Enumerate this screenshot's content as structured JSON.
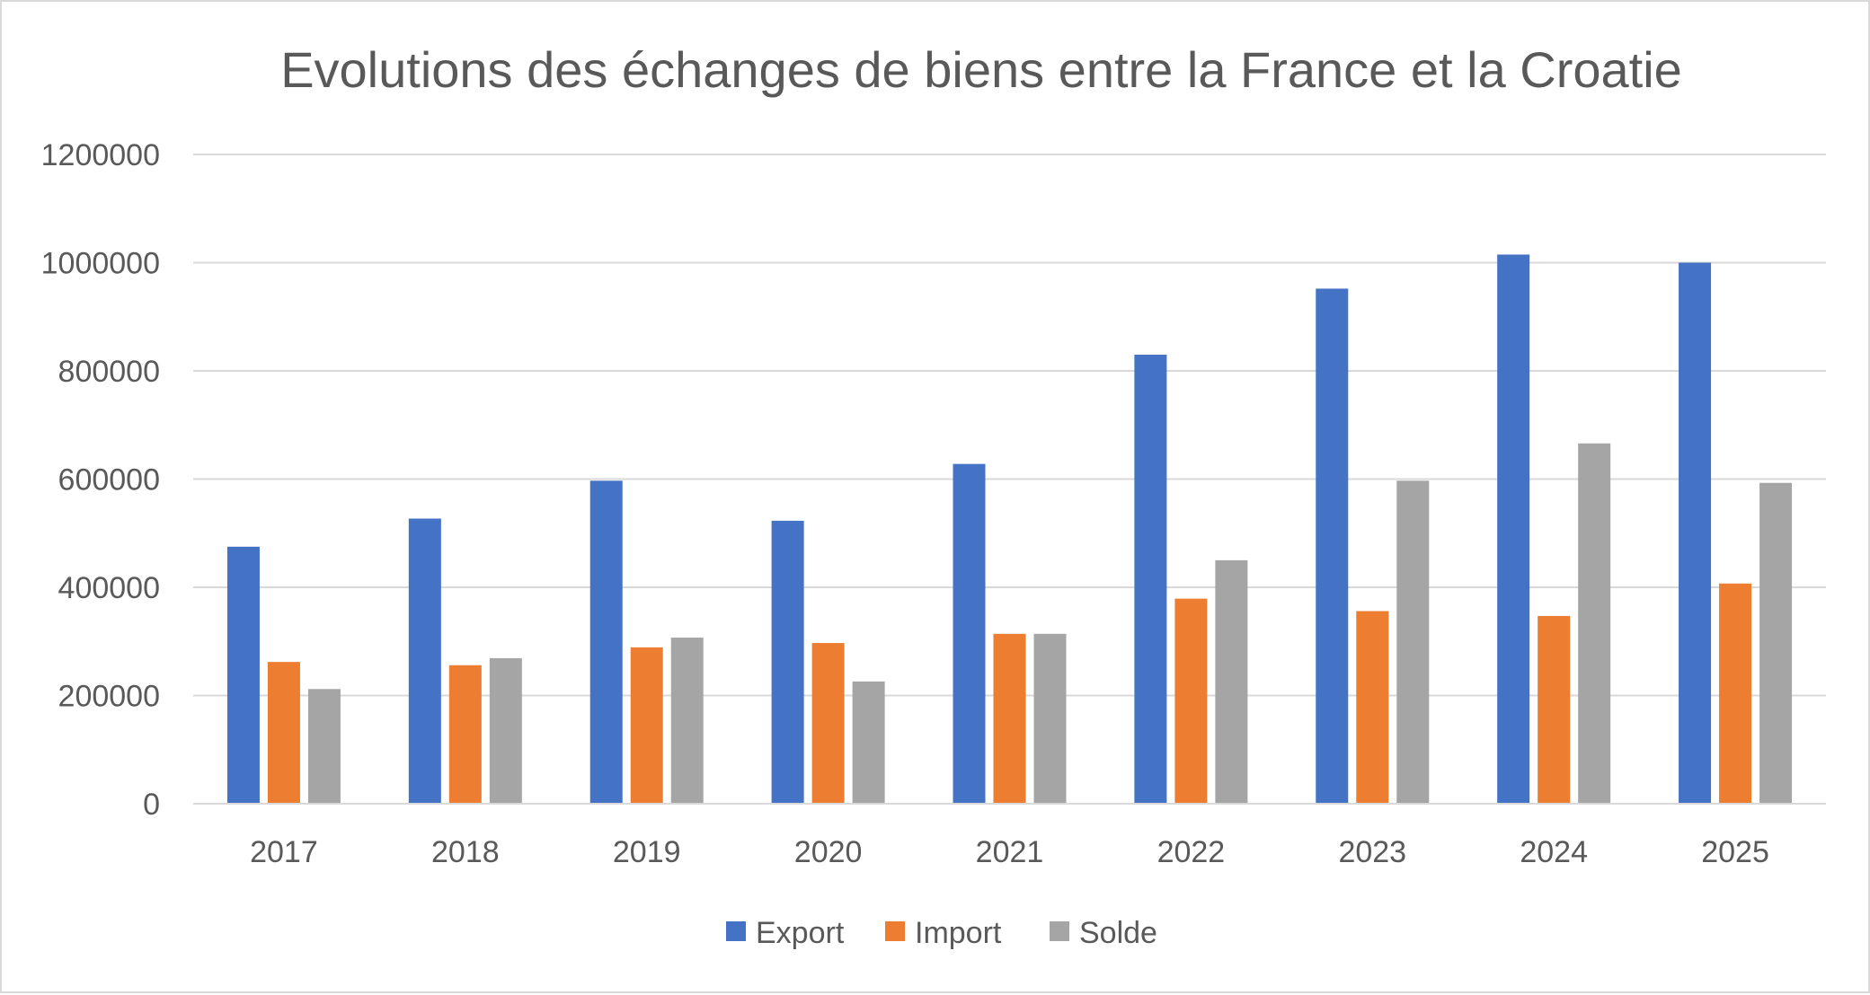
{
  "chart_data": {
    "type": "bar",
    "title": "Evolutions des échanges de biens entre la France et la Croatie",
    "xlabel": "",
    "ylabel": "",
    "categories": [
      "2017",
      "2018",
      "2019",
      "2020",
      "2021",
      "2022",
      "2023",
      "2024",
      "2025"
    ],
    "series": [
      {
        "name": "Export",
        "color": "#4472C4",
        "values": [
          475000,
          527000,
          597000,
          523000,
          628000,
          830000,
          952000,
          1015000,
          1000000
        ]
      },
      {
        "name": "Import",
        "color": "#ED7D31",
        "values": [
          262000,
          256000,
          289000,
          297000,
          314000,
          379000,
          356000,
          347000,
          407000
        ]
      },
      {
        "name": "Solde",
        "color": "#A5A5A5",
        "values": [
          212000,
          269000,
          307000,
          226000,
          314000,
          450000,
          597000,
          666000,
          593000
        ]
      }
    ],
    "yticks": [
      "0",
      "200000",
      "400000",
      "600000",
      "800000",
      "1000000",
      "1200000"
    ],
    "ylim": [
      0,
      1200000
    ],
    "grid": true,
    "legend_position": "bottom"
  }
}
